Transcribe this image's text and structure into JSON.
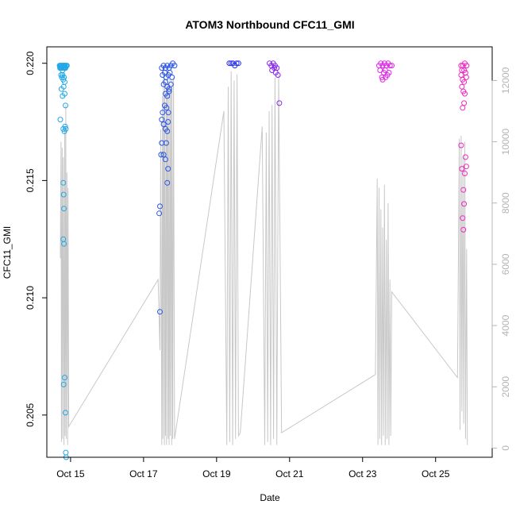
{
  "chart_data": {
    "type": "scatter",
    "title": "ATOM3 Northbound CFC11_GMI",
    "xlabel": "Date",
    "ylabel": "CFC11_GMI",
    "x_ticks": [
      "Oct 15",
      "Oct 17",
      "Oct 19",
      "Oct 21",
      "Oct 23",
      "Oct 25"
    ],
    "y_ticks": [
      "0.205",
      "0.210",
      "0.215",
      "0.220"
    ],
    "y2_ticks": [
      "0",
      "2000",
      "4000",
      "6000",
      "8000",
      "10000",
      "12000"
    ],
    "ylim": [
      0.2032,
      0.2207
    ],
    "y2lim": [
      -300,
      13100
    ],
    "xlim_days": [
      14.35,
      26.55
    ],
    "point_style": "open circle",
    "colors": {
      "altitude_line": "#c8c8c8",
      "flight_1": "#22a8e8",
      "flight_2": "#2a55e8",
      "flight_3": "#2830ee",
      "flight_4": "#8a28ee",
      "flight_5": "#e028e8",
      "flight_6": "#ee28c0"
    },
    "flights": [
      {
        "color_key": "flight_1",
        "x": [
          14.7,
          14.71,
          14.72,
          14.73,
          14.74,
          14.75,
          14.76,
          14.77,
          14.78,
          14.79,
          14.8,
          14.81,
          14.82,
          14.83,
          14.84,
          14.85,
          14.86,
          14.88,
          14.9,
          14.74,
          14.76,
          14.78,
          14.8,
          14.82,
          14.84,
          14.75,
          14.78,
          14.81,
          14.84,
          14.72,
          14.8,
          14.83,
          14.85,
          14.87,
          14.86,
          14.8,
          14.81,
          14.82,
          14.8,
          14.82,
          14.81,
          14.84,
          14.86,
          14.87,
          14.88
        ],
        "y": [
          0.2199,
          0.2198,
          0.2199,
          0.2198,
          0.2199,
          0.2198,
          0.2199,
          0.2198,
          0.2197,
          0.2199,
          0.2198,
          0.2199,
          0.2198,
          0.2199,
          0.2198,
          0.2199,
          0.2198,
          0.2199,
          0.2199,
          0.2195,
          0.2194,
          0.2195,
          0.2193,
          0.2194,
          0.2192,
          0.2189,
          0.2186,
          0.219,
          0.2187,
          0.2176,
          0.2172,
          0.2171,
          0.2173,
          0.2172,
          0.2182,
          0.2149,
          0.2144,
          0.2138,
          0.2125,
          0.2123,
          0.2063,
          0.2066,
          0.2051,
          0.2034,
          0.2032
        ]
      },
      {
        "color_key": "flight_2",
        "x": [
          17.5,
          17.55,
          17.6,
          17.65,
          17.7,
          17.75,
          17.8,
          17.85,
          17.52,
          17.58,
          17.62,
          17.68,
          17.72,
          17.78,
          17.55,
          17.6,
          17.65,
          17.7,
          17.75,
          17.6,
          17.65,
          17.7,
          17.58,
          17.63,
          17.68,
          17.5,
          17.52,
          17.55,
          17.6,
          17.65,
          17.67,
          17.62,
          17.5,
          17.55,
          17.6,
          17.65,
          17.67,
          17.45,
          17.43,
          17.48,
          17.45
        ],
        "y": [
          0.2198,
          0.2199,
          0.2198,
          0.2199,
          0.2198,
          0.2199,
          0.22,
          0.2199,
          0.2195,
          0.2196,
          0.2194,
          0.2195,
          0.2196,
          0.2194,
          0.2191,
          0.2192,
          0.219,
          0.2189,
          0.2191,
          0.2187,
          0.2186,
          0.2188,
          0.2182,
          0.2181,
          0.2179,
          0.2176,
          0.2179,
          0.2174,
          0.2172,
          0.2171,
          0.2175,
          0.2166,
          0.2166,
          0.2161,
          0.2159,
          0.2149,
          0.2155,
          0.2139,
          0.2136,
          0.2161,
          0.2094
        ]
      },
      {
        "color_key": "flight_3",
        "x": [
          19.35,
          19.4,
          19.45,
          19.5,
          19.55,
          19.6
        ],
        "y": [
          0.22,
          0.22,
          0.22,
          0.2199,
          0.22,
          0.22
        ]
      },
      {
        "color_key": "flight_4",
        "x": [
          20.45,
          20.5,
          20.55,
          20.6,
          20.65,
          20.52,
          20.58,
          20.62,
          20.68,
          20.72
        ],
        "y": [
          0.22,
          0.2199,
          0.22,
          0.2199,
          0.2198,
          0.2197,
          0.2198,
          0.2196,
          0.2195,
          0.2183
        ]
      },
      {
        "color_key": "flight_5",
        "x": [
          23.45,
          23.5,
          23.55,
          23.6,
          23.65,
          23.7,
          23.75,
          23.8,
          23.48,
          23.58,
          23.62,
          23.72,
          23.53,
          23.63,
          23.68,
          23.55
        ],
        "y": [
          0.2199,
          0.22,
          0.2199,
          0.22,
          0.2199,
          0.22,
          0.2199,
          0.2199,
          0.2197,
          0.2196,
          0.2197,
          0.2196,
          0.2194,
          0.2194,
          0.2195,
          0.2193
        ]
      },
      {
        "color_key": "flight_6",
        "x": [
          25.7,
          25.75,
          25.8,
          25.85,
          25.72,
          25.78,
          25.82,
          25.7,
          25.74,
          25.78,
          25.84,
          25.72,
          25.76,
          25.8,
          25.74,
          25.78,
          25.7,
          25.72,
          25.82,
          25.84,
          25.8,
          25.76,
          25.78,
          25.74,
          25.76
        ],
        "y": [
          0.2199,
          0.2199,
          0.22,
          0.2199,
          0.2197,
          0.2197,
          0.2196,
          0.2195,
          0.2193,
          0.2192,
          0.2194,
          0.219,
          0.2188,
          0.2187,
          0.2181,
          0.2183,
          0.2165,
          0.2155,
          0.216,
          0.2156,
          0.2153,
          0.2146,
          0.214,
          0.2134,
          0.2129
        ]
      }
    ],
    "altitude": {
      "x": [
        14.72,
        14.74,
        14.75,
        14.77,
        14.78,
        14.8,
        14.82,
        14.84,
        14.85,
        14.87,
        14.88,
        14.9,
        14.92,
        14.93,
        14.95,
        17.4,
        17.45,
        17.47,
        17.5,
        17.52,
        17.53,
        17.55,
        17.57,
        17.58,
        17.6,
        17.62,
        17.63,
        17.65,
        17.67,
        17.68,
        17.7,
        17.72,
        17.73,
        17.75,
        17.77,
        17.78,
        17.8,
        17.82,
        17.85,
        19.2,
        19.28,
        19.32,
        19.36,
        19.4,
        19.44,
        19.48,
        19.52,
        19.56,
        19.6,
        19.65,
        20.25,
        20.32,
        20.36,
        20.4,
        20.44,
        20.48,
        20.52,
        20.56,
        20.6,
        20.65,
        20.7,
        20.78,
        23.35,
        23.4,
        23.42,
        23.45,
        23.47,
        23.5,
        23.52,
        23.55,
        23.57,
        23.6,
        23.62,
        23.65,
        23.67,
        23.7,
        23.72,
        23.75,
        23.77,
        23.8,
        25.6,
        25.65,
        25.67,
        25.7,
        25.72,
        25.75,
        25.77,
        25.8,
        25.82,
        25.85,
        25.87
      ],
      "y": [
        6200,
        10000,
        200,
        9800,
        300,
        9500,
        100,
        10500,
        400,
        11200,
        300,
        9000,
        100,
        8500,
        700,
        5500,
        3200,
        10400,
        100,
        11500,
        300,
        12300,
        100,
        12000,
        400,
        11800,
        100,
        12100,
        300,
        11900,
        100,
        12200,
        400,
        11700,
        100,
        12000,
        300,
        12100,
        300,
        11000,
        100,
        11800,
        200,
        12300,
        100,
        12000,
        300,
        12200,
        400,
        500,
        10500,
        100,
        10300,
        200,
        11000,
        100,
        11200,
        300,
        12100,
        100,
        12200,
        500,
        2400,
        8800,
        100,
        8500,
        300,
        7800,
        100,
        7200,
        400,
        8600,
        100,
        6800,
        300,
        8000,
        100,
        5500,
        400,
        5100,
        2300,
        10100,
        600,
        10200,
        1200,
        9500,
        800,
        10000,
        300,
        6500,
        100
      ]
    }
  }
}
